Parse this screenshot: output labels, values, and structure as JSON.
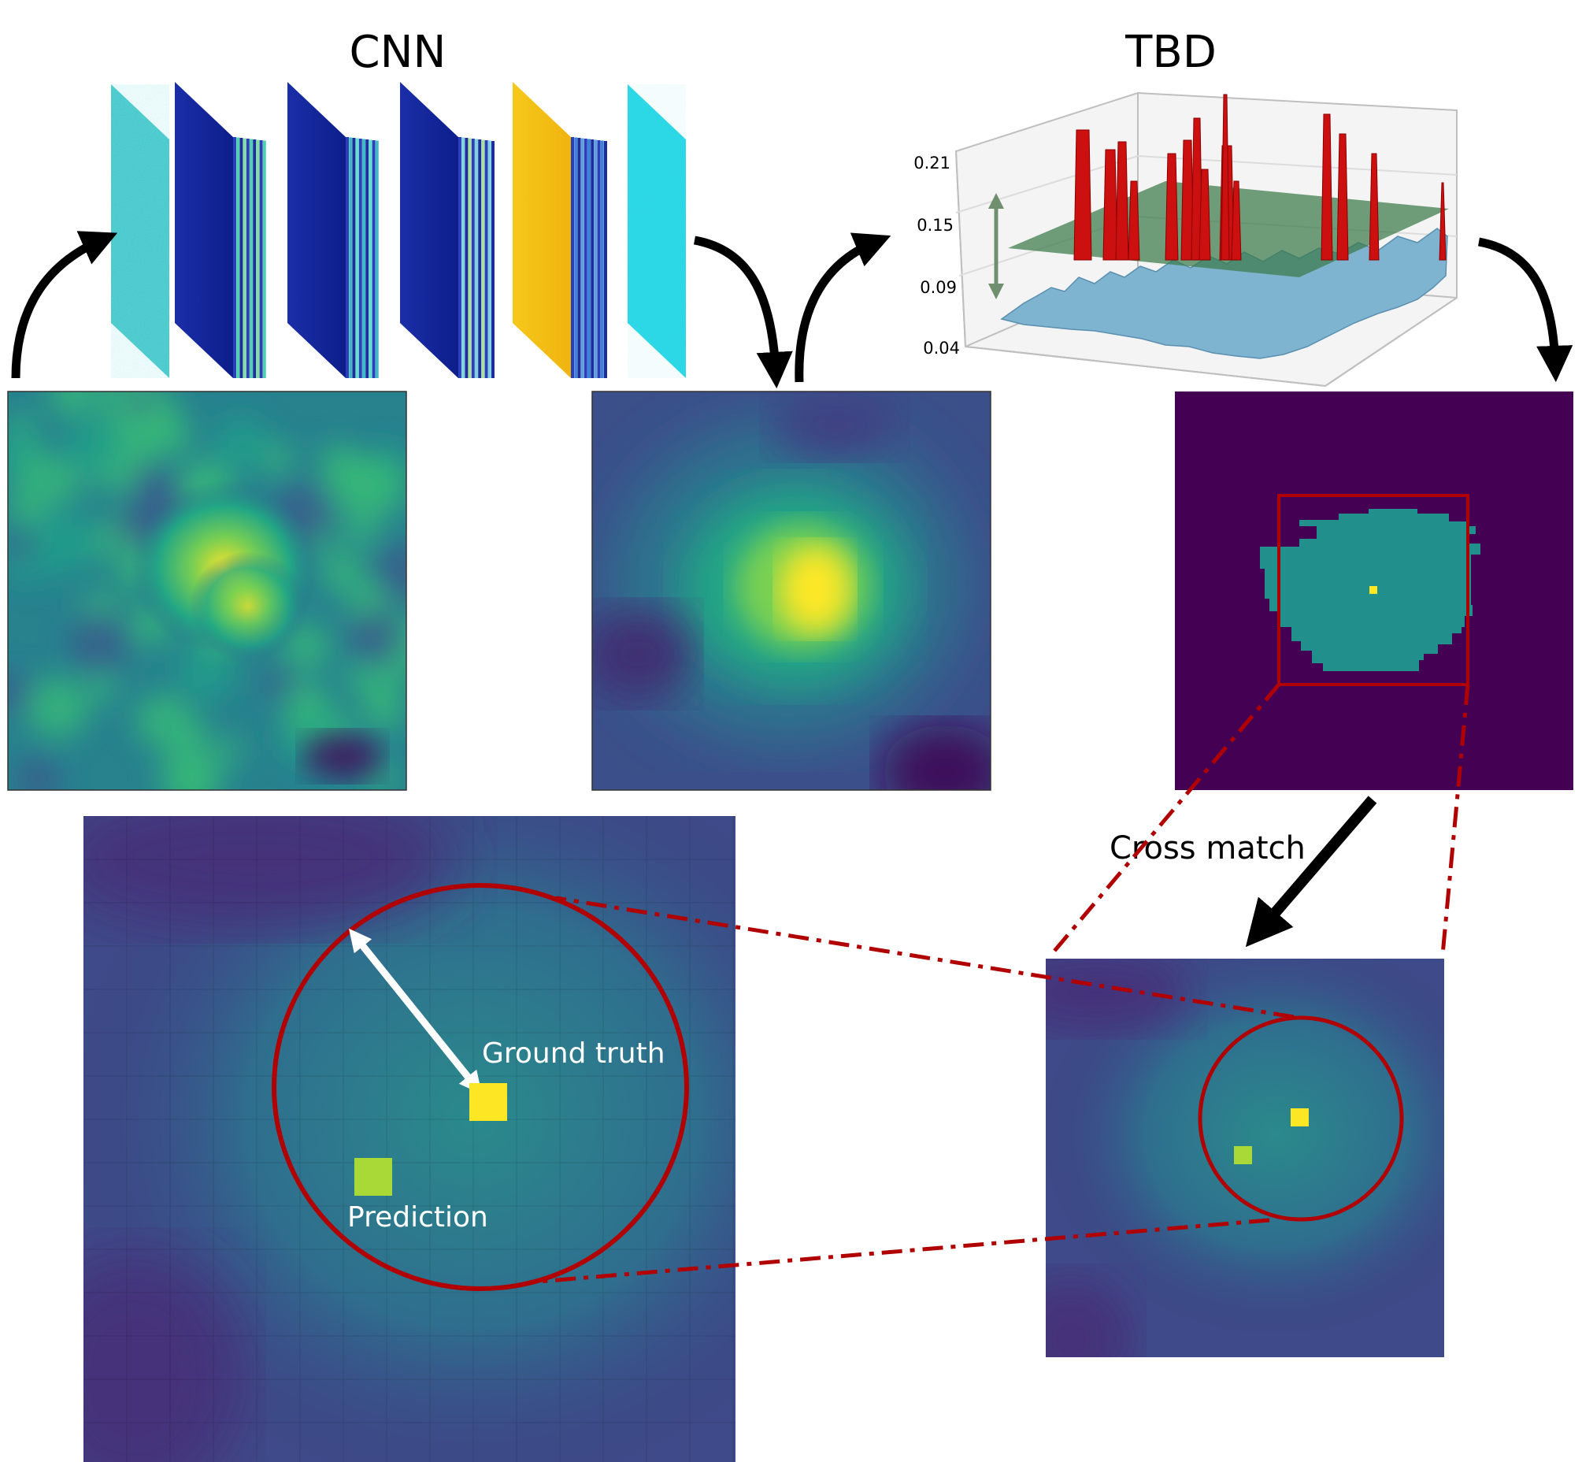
{
  "titles": {
    "cnn": "CNN",
    "tbd": "TBD"
  },
  "tbd_plot": {
    "z_ticks": [
      "0.21",
      "0.15",
      "0.09",
      "0.04"
    ]
  },
  "annotations": {
    "cross_match": "Cross match",
    "ground_truth": "Ground truth",
    "prediction": "Prediction"
  },
  "colors": {
    "dark_red": "#b00000",
    "viridis_dark": "#440154",
    "viridis_teal": "#21908d",
    "viridis_yellow": "#fde725",
    "prediction_green": "#a8d936",
    "threshold_plane": "#3a7a4a",
    "peak_red": "#cc1010",
    "surface_blue": "#7fb4d0"
  }
}
